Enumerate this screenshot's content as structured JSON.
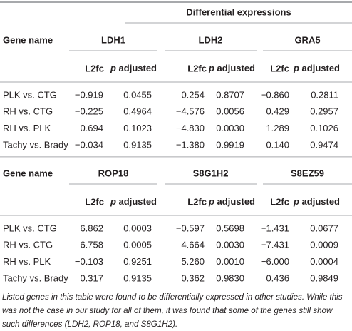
{
  "table": {
    "title": "Differential expressions",
    "blocks": [
      {
        "row_header": "Gene name",
        "genes": [
          "LDH1",
          "LDH2",
          "GRA5"
        ],
        "subheaders": [
          "L2fc",
          "p adjusted",
          "L2fc",
          "p adjusted",
          "L2fc",
          "p adjusted"
        ],
        "rows": [
          [
            "PLK vs. CTG",
            "−0.919",
            "0.0455",
            "0.254",
            "0.8707",
            "−0.860",
            "0.2811"
          ],
          [
            "RH vs. CTG",
            "−0.225",
            "0.4964",
            "−4.576",
            "0.0056",
            "0.429",
            "0.2957"
          ],
          [
            "RH vs. PLK",
            "0.694",
            "0.1023",
            "−4.830",
            "0.0030",
            "1.289",
            "0.1026"
          ],
          [
            "Tachy vs. Brady",
            "−0.034",
            "0.9135",
            "−1.380",
            "0.9919",
            "0.140",
            "0.9474"
          ]
        ]
      },
      {
        "row_header": "Gene name",
        "genes": [
          "ROP18",
          "S8G1H2",
          "S8EZ59"
        ],
        "subheaders": [
          "L2fc",
          "p adjusted",
          "L2fc",
          "p adjusted",
          "L2fc",
          "p adjusted"
        ],
        "rows": [
          [
            "PLK vs. CTG",
            "6.862",
            "0.0003",
            "−0.597",
            "0.5698",
            "−1.431",
            "0.0677"
          ],
          [
            "RH vs. CTG",
            "6.758",
            "0.0005",
            "4.664",
            "0.0030",
            "−7.431",
            "0.0009"
          ],
          [
            "RH vs. PLK",
            "−0.103",
            "0.9251",
            "5.260",
            "0.0010",
            "−6.000",
            "0.0004"
          ],
          [
            "Tachy vs. Brady",
            "0.317",
            "0.9135",
            "0.362",
            "0.9830",
            "0.436",
            "0.9849"
          ]
        ]
      }
    ],
    "footnote": "Listed genes in this table were found to be differentially expressed in other studies. While this was not the case in our study for all of them, it was found that some of the genes still show such differences (LDH2, ROP18, and S8G1H2)."
  }
}
